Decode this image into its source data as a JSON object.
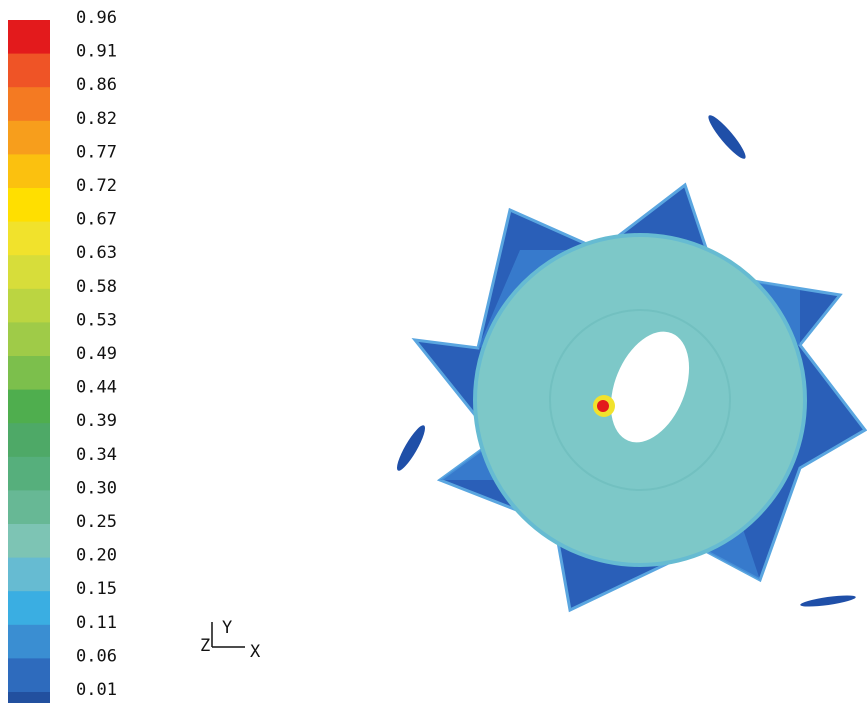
{
  "legend": {
    "levels": [
      "0.96",
      "0.91",
      "0.86",
      "0.82",
      "0.77",
      "0.72",
      "0.67",
      "0.63",
      "0.58",
      "0.53",
      "0.49",
      "0.44",
      "0.39",
      "0.34",
      "0.30",
      "0.25",
      "0.20",
      "0.15",
      "0.11",
      "0.06",
      "0.01"
    ],
    "colors": [
      "#e31a1c",
      "#ef5426",
      "#f47a22",
      "#f79e1c",
      "#fbc10f",
      "#ffdf00",
      "#f1e22c",
      "#d7dd3a",
      "#bbd541",
      "#9fcb48",
      "#7cbf4c",
      "#4fae4e",
      "#4ea967",
      "#56af7c",
      "#67b895",
      "#7dc4b4",
      "#66bbd2",
      "#3aaee2",
      "#3a8ed2",
      "#2e6bbd",
      "#22509f"
    ]
  },
  "axes": {
    "y": "Y",
    "z": "Z",
    "x": "X"
  }
}
